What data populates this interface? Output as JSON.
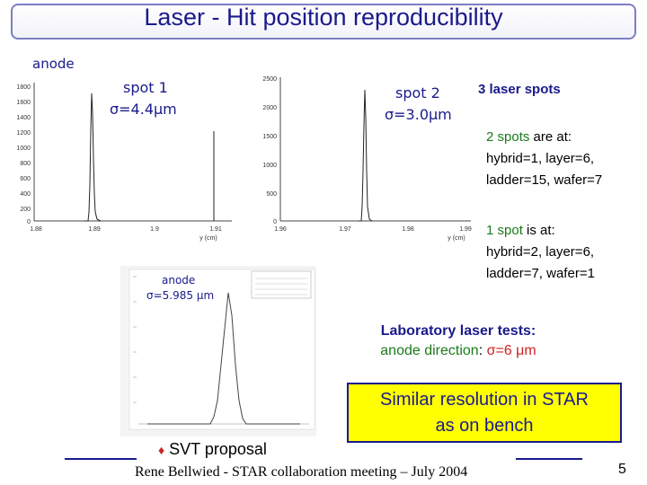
{
  "header": {
    "title": "Laser - Hit position reproducibility"
  },
  "plots": {
    "anode_label": "anode",
    "spot1": {
      "name": "spot 1",
      "sigma": "σ=4.4μm",
      "y_ticks": [
        "1800",
        "1600",
        "1400",
        "1200",
        "1000",
        "800",
        "600",
        "400",
        "200",
        "0"
      ],
      "x_ticks": [
        "1.88",
        "1.89",
        "1.9",
        "1.91"
      ],
      "x_label": "y (cm)"
    },
    "spot2": {
      "name": "spot 2",
      "sigma": "σ=3.0μm",
      "y_ticks": [
        "2500",
        "2000",
        "1500",
        "1000",
        "500",
        "0"
      ],
      "x_ticks": [
        "1.96",
        "1.97",
        "1.98",
        "1.99"
      ],
      "x_label": "y (cm)"
    },
    "bench": {
      "label": "anode",
      "sigma": "σ=5.985 μm"
    }
  },
  "right_panel": {
    "heading": "3 laser spots",
    "two_spots": {
      "prefix": "2 spots",
      "rest": " are at:",
      "line2": "hybrid=1, layer=6,",
      "line3": "ladder=15, wafer=7"
    },
    "one_spot": {
      "prefix": "1 spot",
      "rest": " is at:",
      "line2": "hybrid=2, layer=6,",
      "line3": "ladder=7, wafer=1"
    }
  },
  "lab": {
    "line1": "Laboratory laser tests:",
    "anode_dir": "anode direction",
    "colon": ": ",
    "sigma": "σ=6 μm"
  },
  "callout": {
    "line1": "Similar resolution in STAR",
    "line2": "as on bench"
  },
  "footer": {
    "bullet": "♦",
    "svt": "SVT proposal",
    "citation": "Rene Bellwied - STAR collaboration meeting – July 2004",
    "page": "5"
  },
  "colors": {
    "title": "#1a1a8c",
    "accent_green": "#1a7a1a",
    "accent_red": "#cc2222",
    "callout_bg": "#ffff00",
    "callout_border": "#1a1a8c"
  }
}
